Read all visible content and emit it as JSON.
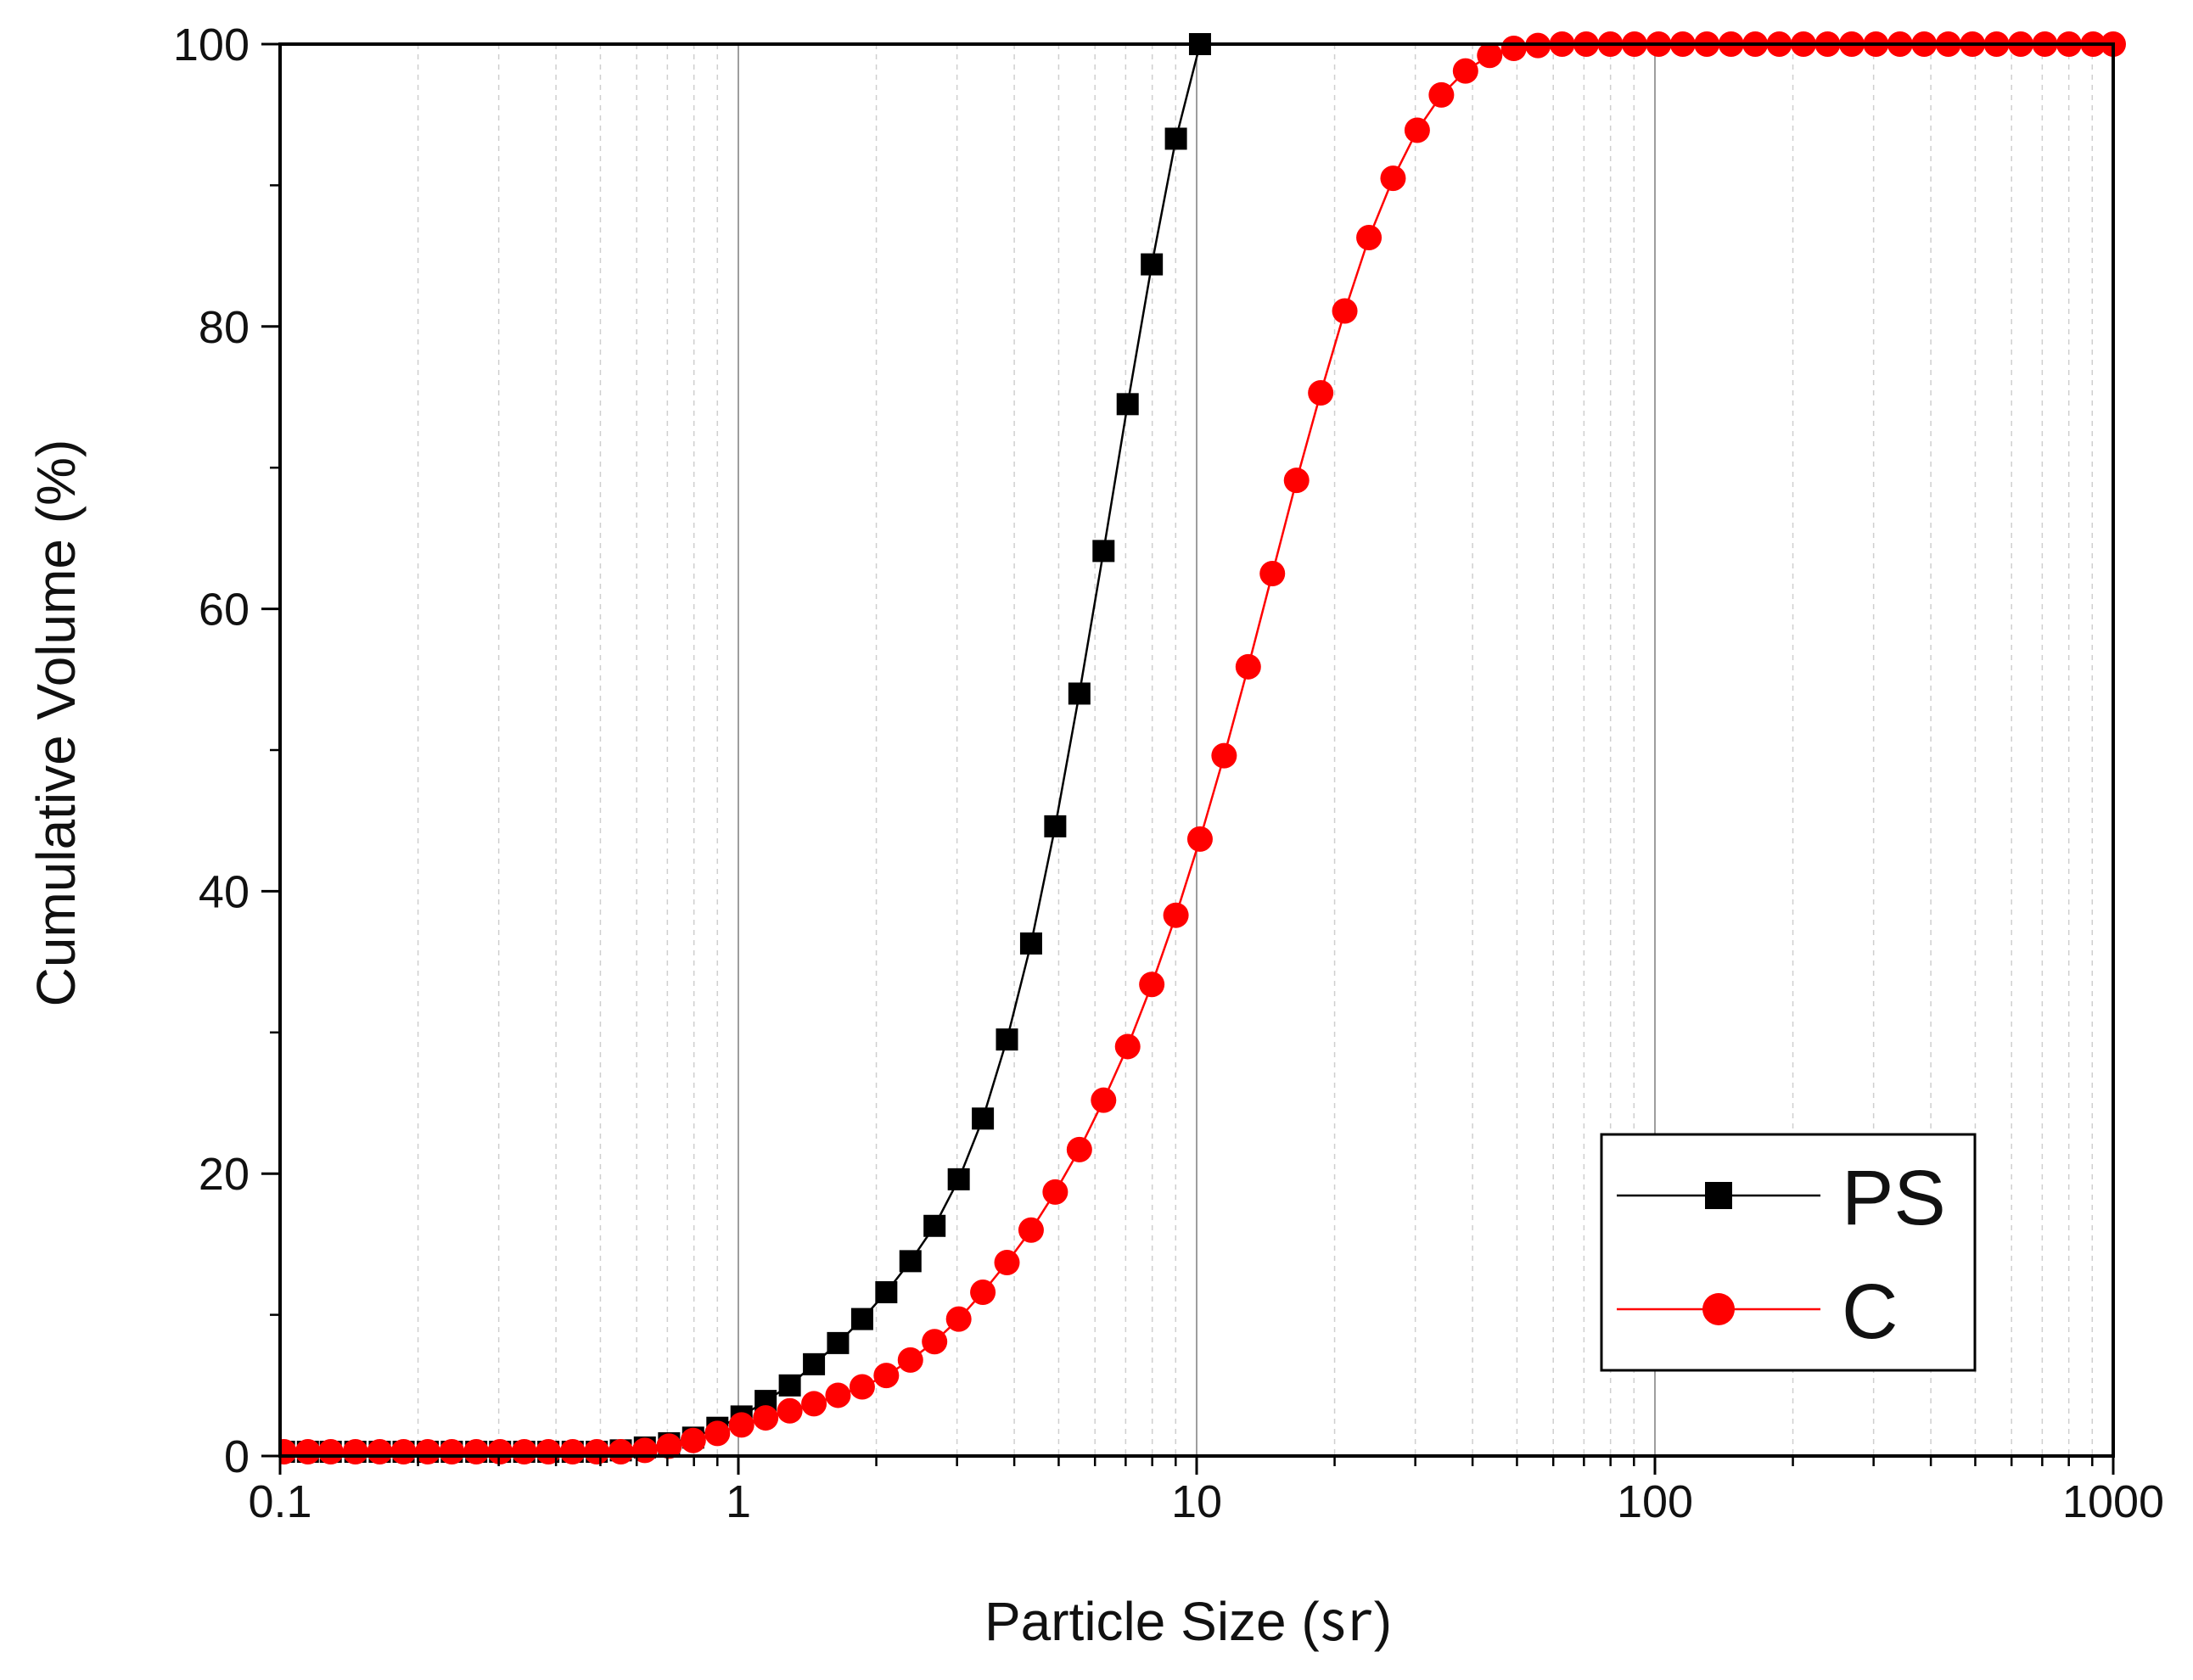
{
  "chart_data": {
    "type": "line",
    "title": "",
    "xlabel": "Particle Size (㏛)",
    "ylabel": "Cumulative Volume (%)",
    "xscale": "log",
    "xlim": [
      0.1,
      1000
    ],
    "ylim": [
      0,
      100
    ],
    "x_tick_labels": [
      "0.1",
      "1",
      "10",
      "100",
      "1000"
    ],
    "y_tick_labels": [
      "0",
      "20",
      "40",
      "60",
      "80",
      "100"
    ],
    "grid": "vertical, log minor",
    "legend_position": "bottom-right",
    "series": [
      {
        "name": "PS",
        "color": "#000000",
        "marker": "square",
        "x": [
          0.102,
          0.115,
          0.129,
          0.146,
          0.165,
          0.186,
          0.21,
          0.237,
          0.268,
          0.302,
          0.341,
          0.385,
          0.435,
          0.491,
          0.554,
          0.625,
          0.706,
          0.797,
          0.9,
          1.016,
          1.147,
          1.295,
          1.462,
          1.65,
          1.863,
          2.103,
          2.374,
          2.68,
          3.026,
          3.416,
          3.856,
          4.353,
          4.914,
          5.548,
          6.264,
          7.071,
          7.983,
          9.012,
          10.17
        ],
        "y": [
          0.3,
          0.3,
          0.3,
          0.3,
          0.3,
          0.3,
          0.3,
          0.3,
          0.3,
          0.3,
          0.3,
          0.3,
          0.3,
          0.3,
          0.4,
          0.6,
          0.9,
          1.3,
          2.0,
          2.8,
          3.9,
          5.0,
          6.5,
          8.0,
          9.7,
          11.6,
          13.8,
          16.3,
          19.6,
          23.9,
          29.5,
          36.3,
          44.6,
          54.0,
          64.1,
          74.5,
          84.4,
          93.3,
          100
        ]
      },
      {
        "name": "C",
        "color": "#ff0000",
        "marker": "circle",
        "x": [
          0.102,
          0.115,
          0.129,
          0.146,
          0.165,
          0.186,
          0.21,
          0.237,
          0.268,
          0.302,
          0.341,
          0.385,
          0.435,
          0.491,
          0.554,
          0.625,
          0.706,
          0.797,
          0.9,
          1.016,
          1.147,
          1.295,
          1.462,
          1.65,
          1.863,
          2.103,
          2.374,
          2.68,
          3.026,
          3.416,
          3.856,
          4.353,
          4.914,
          5.548,
          6.264,
          7.071,
          7.983,
          9.012,
          10.17,
          11.48,
          12.96,
          14.63,
          16.52,
          18.65,
          21.05,
          23.77,
          26.83,
          30.29,
          34.2,
          38.61,
          43.59,
          49.21,
          55.56,
          62.72,
          70.8,
          79.93,
          90.24,
          101.9,
          115.0,
          129.8,
          146.6,
          165.5,
          186.8,
          210.9,
          238.1,
          268.8,
          303.5,
          342.6,
          386.8,
          436.7,
          493.0,
          556.5,
          628.3,
          709.3,
          800.8,
          904.0,
          1000
        ],
        "y": [
          0.3,
          0.3,
          0.3,
          0.3,
          0.3,
          0.3,
          0.3,
          0.3,
          0.3,
          0.3,
          0.3,
          0.3,
          0.3,
          0.3,
          0.3,
          0.4,
          0.7,
          1.1,
          1.6,
          2.2,
          2.7,
          3.2,
          3.7,
          4.3,
          4.9,
          5.7,
          6.8,
          8.1,
          9.7,
          11.6,
          13.7,
          16.0,
          18.7,
          21.7,
          25.2,
          29.0,
          33.4,
          38.3,
          43.7,
          49.6,
          55.9,
          62.5,
          69.1,
          75.3,
          81.1,
          86.3,
          90.5,
          93.9,
          96.4,
          98.1,
          99.2,
          99.7,
          99.9,
          100,
          100,
          100,
          100,
          100,
          100,
          100,
          100,
          100,
          100,
          100,
          100,
          100,
          100,
          100,
          100,
          100,
          100,
          100,
          100,
          100,
          100,
          100,
          100
        ]
      }
    ]
  }
}
